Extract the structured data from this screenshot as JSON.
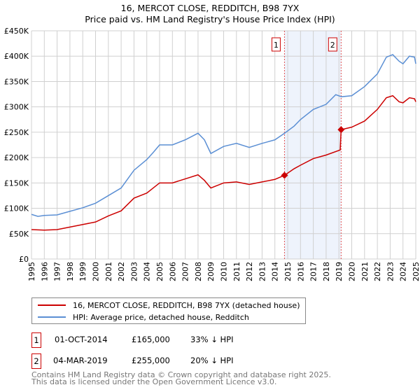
{
  "chart_data": {
    "type": "line",
    "title": "16, MERCOT CLOSE, REDDITCH, B98 7YX",
    "subtitle": "Price paid vs. HM Land Registry's House Price Index (HPI)",
    "xlim": [
      1995,
      2025
    ],
    "ylim": [
      0,
      450000
    ],
    "y_ticks": [
      0,
      50000,
      100000,
      150000,
      200000,
      250000,
      300000,
      350000,
      400000,
      450000
    ],
    "y_tick_labels": [
      "£0",
      "£50K",
      "£100K",
      "£150K",
      "£200K",
      "£250K",
      "£300K",
      "£350K",
      "£400K",
      "£450K"
    ],
    "x_ticks": [
      1995,
      1996,
      1997,
      1998,
      1999,
      2000,
      2001,
      2002,
      2003,
      2004,
      2005,
      2006,
      2007,
      2008,
      2009,
      2010,
      2011,
      2012,
      2013,
      2014,
      2015,
      2016,
      2017,
      2018,
      2019,
      2020,
      2021,
      2022,
      2023,
      2024,
      2025
    ],
    "grid": true,
    "series": [
      {
        "name": "16, MERCOT CLOSE, REDDITCH, B98 7YX (detached house)",
        "color": "#cc0000",
        "x": [
          1995,
          1996,
          1997,
          1998,
          1999,
          2000,
          2001,
          2002,
          2003,
          2004,
          2005,
          2006,
          2007,
          2008,
          2008.5,
          2009,
          2010,
          2011,
          2012,
          2013,
          2014,
          2014.75,
          2015.5,
          2016,
          2017,
          2018,
          2019.1,
          2019.17,
          2020,
          2021,
          2022,
          2022.7,
          2023.2,
          2023.7,
          2024,
          2024.5,
          2024.9,
          2025
        ],
        "y": [
          58000,
          57000,
          58000,
          63000,
          68000,
          73000,
          85000,
          95000,
          120000,
          130000,
          150000,
          150000,
          158000,
          166000,
          155000,
          140000,
          150000,
          152000,
          147000,
          152000,
          157000,
          165000,
          178000,
          185000,
          198000,
          205000,
          215000,
          255000,
          260000,
          272000,
          295000,
          318000,
          322000,
          310000,
          308000,
          318000,
          316000,
          310000
        ]
      },
      {
        "name": "HPI: Average price, detached house, Redditch",
        "color": "#5b8fd4",
        "x": [
          1995,
          1995.5,
          1996,
          1997,
          1998,
          1999,
          2000,
          2001,
          2002,
          2003,
          2004,
          2004.5,
          2005,
          2006,
          2007,
          2008,
          2008.5,
          2009,
          2010,
          2011,
          2012,
          2013,
          2014,
          2014.75,
          2015.5,
          2016,
          2017,
          2018,
          2018.75,
          2019.2,
          2020,
          2021,
          2022,
          2022.7,
          2023.2,
          2023.7,
          2024,
          2024.5,
          2024.9,
          2025
        ],
        "y": [
          88000,
          84000,
          86000,
          87000,
          94000,
          101000,
          110000,
          125000,
          140000,
          175000,
          196000,
          210000,
          225000,
          225000,
          235000,
          248000,
          235000,
          208000,
          222000,
          228000,
          220000,
          228000,
          235000,
          248000,
          262000,
          275000,
          295000,
          305000,
          324000,
          320000,
          322000,
          340000,
          365000,
          398000,
          403000,
          390000,
          385000,
          400000,
          398000,
          385000
        ]
      }
    ],
    "sales": [
      {
        "label": "1",
        "x": 2014.75,
        "y": 165000,
        "date": "01-OCT-2014",
        "price": "£165,000",
        "hpi": "33% ↓ HPI"
      },
      {
        "label": "2",
        "x": 2019.17,
        "y": 255000,
        "date": "04-MAR-2019",
        "price": "£255,000",
        "hpi": "20% ↓ HPI"
      }
    ],
    "shade_range": [
      2014.75,
      2019.17
    ]
  },
  "footer": {
    "line1": "Contains HM Land Registry data © Crown copyright and database right 2025.",
    "line2": "This data is licensed under the Open Government Licence v3.0."
  }
}
